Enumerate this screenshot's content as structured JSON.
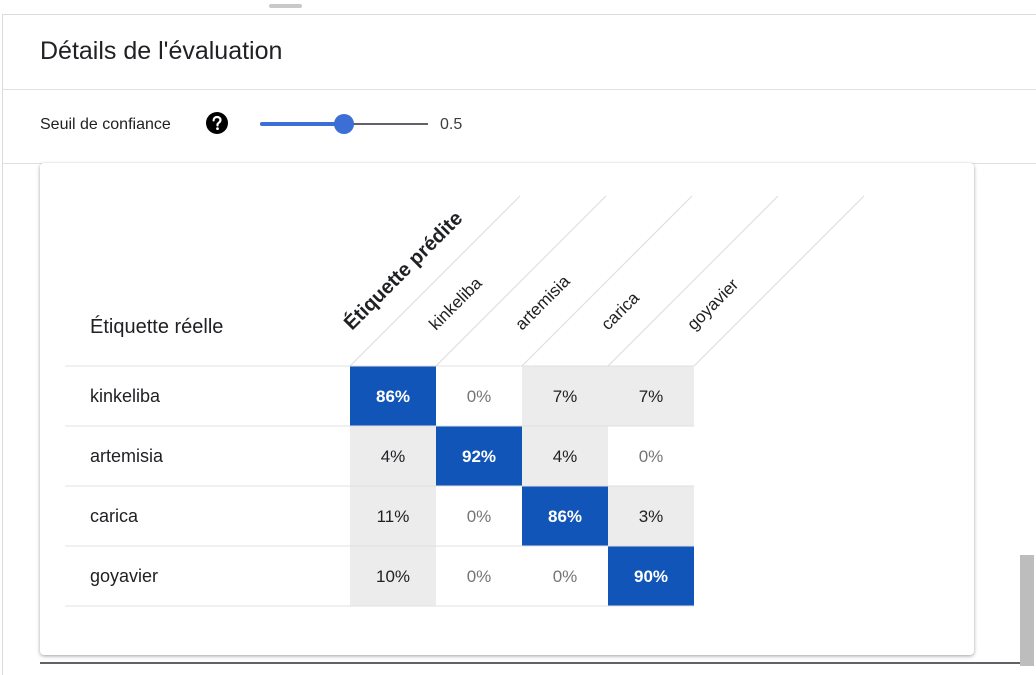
{
  "panel": {
    "title": "Détails de l'évaluation"
  },
  "toolbar": {
    "threshold_label": "Seuil de confiance",
    "help_icon": "help-circle-icon",
    "slider_value": 0.5,
    "slider_value_text": "0.5"
  },
  "matrix": {
    "row_axis_label": "Étiquette réelle",
    "col_axis_label": "Étiquette prédite",
    "columns": [
      "kinkeliba",
      "artemisia",
      "carica",
      "goyavier"
    ],
    "rows": [
      {
        "label": "kinkeliba",
        "cells": [
          "86%",
          "0%",
          "7%",
          "7%"
        ],
        "values": [
          86,
          0,
          7,
          7
        ]
      },
      {
        "label": "artemisia",
        "cells": [
          "4%",
          "92%",
          "4%",
          "0%"
        ],
        "values": [
          4,
          92,
          4,
          0
        ]
      },
      {
        "label": "carica",
        "cells": [
          "11%",
          "0%",
          "86%",
          "3%"
        ],
        "values": [
          11,
          0,
          86,
          3
        ]
      },
      {
        "label": "goyavier",
        "cells": [
          "10%",
          "0%",
          "0%",
          "90%"
        ],
        "values": [
          10,
          0,
          0,
          90
        ]
      }
    ]
  },
  "colors": {
    "accent": "#3b6fd6",
    "diagonal_cell": "#1155b8",
    "off_diagonal_cell": "#ececec",
    "zero_text": "#757575"
  }
}
